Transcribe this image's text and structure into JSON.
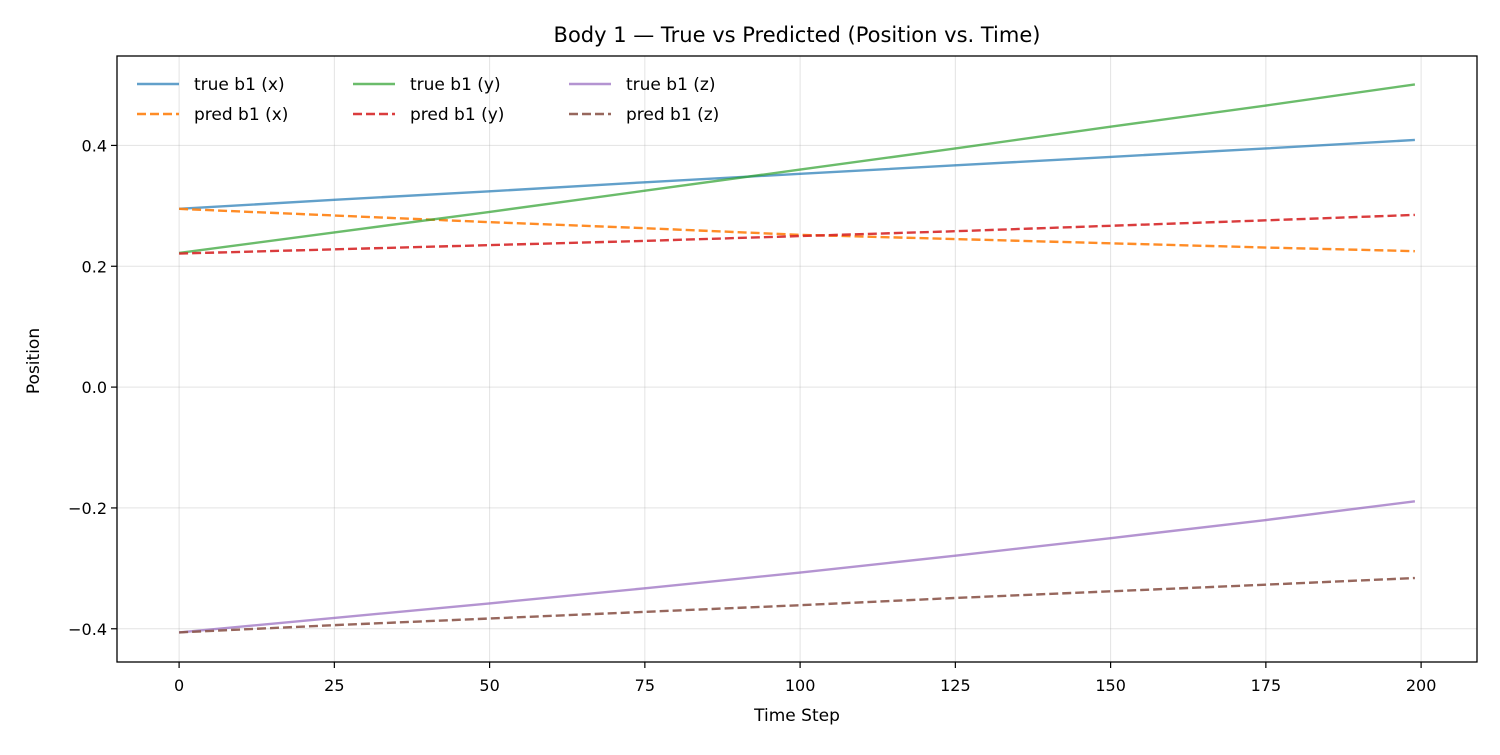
{
  "chart_data": {
    "type": "line",
    "title": "Body 1 — True vs Predicted (Position vs. Time)",
    "xlabel": "Time Step",
    "ylabel": "Position",
    "xlim": [
      -10,
      209
    ],
    "ylim": [
      -0.455,
      0.548
    ],
    "xticks": [
      0,
      25,
      50,
      75,
      100,
      125,
      150,
      175,
      200
    ],
    "xtick_labels": [
      "0",
      "25",
      "50",
      "75",
      "100",
      "125",
      "150",
      "175",
      "200"
    ],
    "yticks": [
      -0.4,
      -0.2,
      0.0,
      0.2,
      0.4
    ],
    "ytick_labels": [
      "−0.4",
      "−0.2",
      "0.0",
      "0.2",
      "0.4"
    ],
    "grid": true,
    "legend": {
      "placement": "top-left",
      "columns": 3
    },
    "series": [
      {
        "name": "true b1 (x)",
        "color": "#1f77b4",
        "style": "solid",
        "x": [
          0,
          25,
          50,
          75,
          100,
          125,
          150,
          175,
          199
        ],
        "y": [
          0.295,
          0.31,
          0.324,
          0.339,
          0.353,
          0.367,
          0.381,
          0.395,
          0.409
        ]
      },
      {
        "name": "pred b1 (x)",
        "color": "#ff7f0e",
        "style": "dashed",
        "x": [
          0,
          25,
          50,
          75,
          100,
          125,
          150,
          175,
          199
        ],
        "y": [
          0.295,
          0.284,
          0.273,
          0.263,
          0.252,
          0.245,
          0.238,
          0.231,
          0.225
        ]
      },
      {
        "name": "true b1 (y)",
        "color": "#2ca02c",
        "style": "solid",
        "x": [
          0,
          25,
          50,
          75,
          100,
          125,
          150,
          175,
          199
        ],
        "y": [
          0.222,
          0.256,
          0.29,
          0.325,
          0.36,
          0.395,
          0.431,
          0.466,
          0.501
        ]
      },
      {
        "name": "pred b1 (y)",
        "color": "#d62728",
        "style": "dashed",
        "x": [
          0,
          25,
          50,
          75,
          100,
          125,
          150,
          175,
          199
        ],
        "y": [
          0.221,
          0.228,
          0.235,
          0.242,
          0.25,
          0.258,
          0.267,
          0.276,
          0.285
        ]
      },
      {
        "name": "true b1 (z)",
        "color": "#9467bd",
        "style": "solid",
        "x": [
          0,
          25,
          50,
          75,
          100,
          125,
          150,
          175,
          199
        ],
        "y": [
          -0.406,
          -0.382,
          -0.358,
          -0.333,
          -0.307,
          -0.279,
          -0.25,
          -0.22,
          -0.189
        ]
      },
      {
        "name": "pred b1 (z)",
        "color": "#8c564b",
        "style": "dashed",
        "x": [
          0,
          25,
          50,
          75,
          100,
          125,
          150,
          175,
          199
        ],
        "y": [
          -0.406,
          -0.394,
          -0.383,
          -0.372,
          -0.361,
          -0.349,
          -0.338,
          -0.327,
          -0.316
        ]
      }
    ]
  }
}
